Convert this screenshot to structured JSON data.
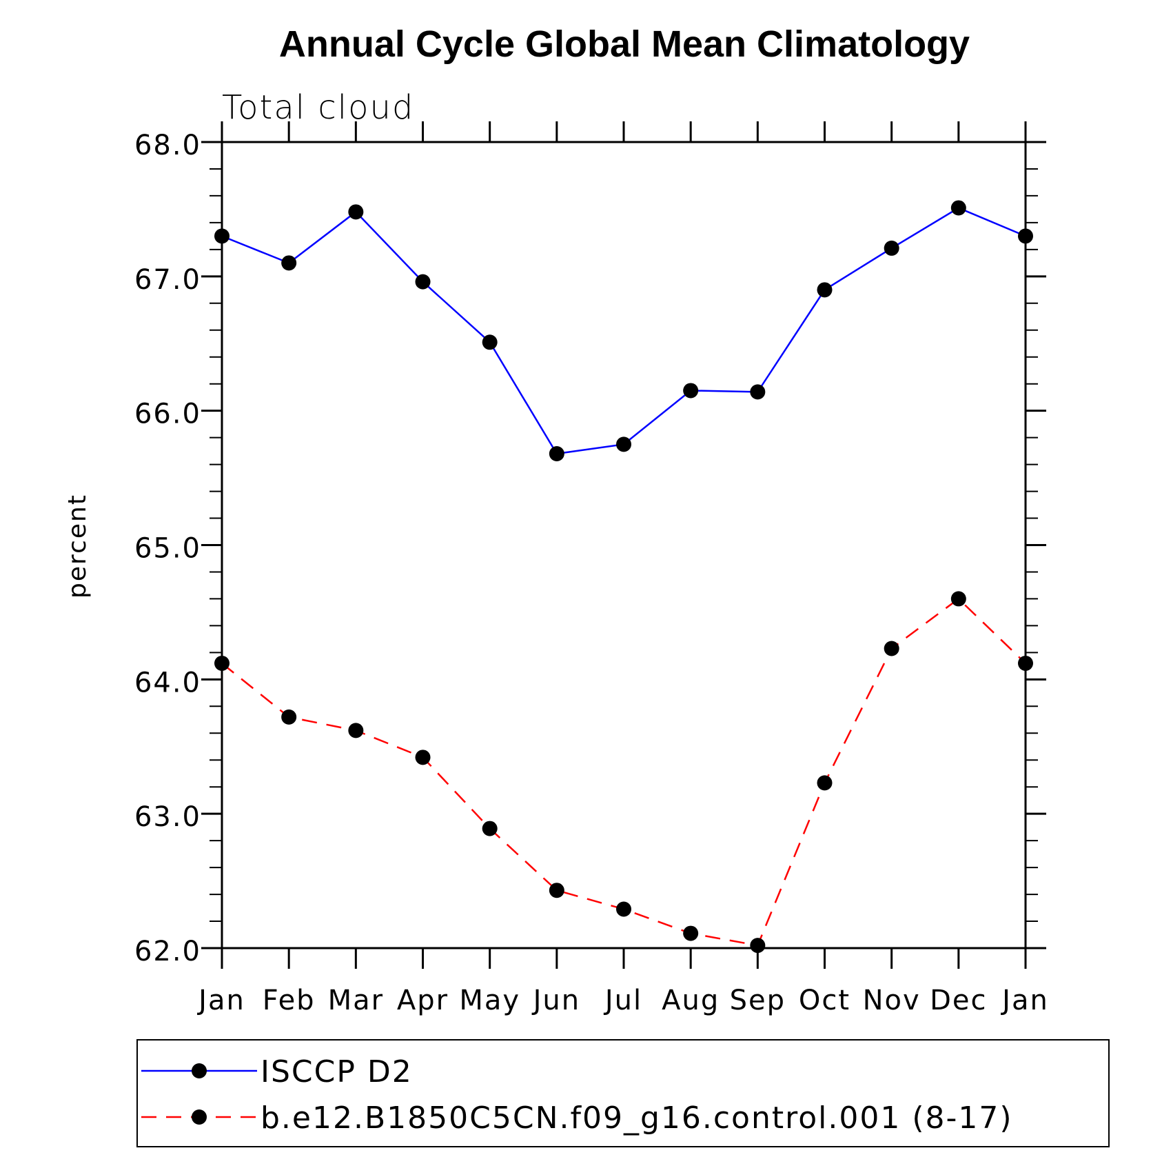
{
  "chart_data": {
    "type": "line",
    "title": "Annual Cycle Global Mean Climatology",
    "subtitle": "Total cloud",
    "xlabel": "",
    "ylabel": "percent",
    "x": [
      "Jan",
      "Feb",
      "Mar",
      "Apr",
      "May",
      "Jun",
      "Jul",
      "Aug",
      "Sep",
      "Oct",
      "Nov",
      "Dec",
      "Jan"
    ],
    "y_ticks": [
      "62.0",
      "63.0",
      "64.0",
      "65.0",
      "66.0",
      "67.0",
      "68.0"
    ],
    "ylim": [
      62.0,
      68.0
    ],
    "grid": false,
    "legend_position": "bottom",
    "series": [
      {
        "name": "ISCCP D2",
        "color": "#0000ff",
        "line_style": "solid",
        "marker": "filled-circle",
        "values": [
          67.3,
          67.1,
          67.48,
          66.96,
          66.51,
          65.68,
          65.75,
          66.15,
          66.14,
          66.9,
          67.21,
          67.51,
          67.3
        ]
      },
      {
        "name": "b.e12.B1850C5CN.f09_g16.control.001 (8-17)",
        "color": "#ff0000",
        "line_style": "dashed",
        "marker": "filled-circle",
        "values": [
          64.12,
          63.72,
          63.62,
          63.42,
          62.89,
          62.43,
          62.29,
          62.11,
          62.02,
          63.23,
          64.23,
          64.6,
          64.12
        ]
      }
    ]
  }
}
